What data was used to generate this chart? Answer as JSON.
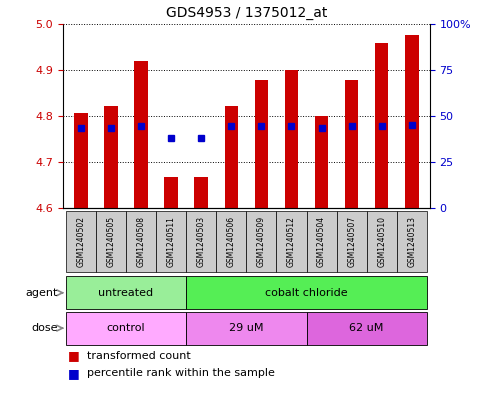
{
  "title": "GDS4953 / 1375012_at",
  "samples": [
    "GSM1240502",
    "GSM1240505",
    "GSM1240508",
    "GSM1240511",
    "GSM1240503",
    "GSM1240506",
    "GSM1240509",
    "GSM1240512",
    "GSM1240504",
    "GSM1240507",
    "GSM1240510",
    "GSM1240513"
  ],
  "transformed_counts": [
    4.807,
    4.822,
    4.919,
    4.667,
    4.668,
    4.822,
    4.877,
    4.899,
    4.8,
    4.877,
    4.957,
    4.975
  ],
  "percentile_ranks_pct": [
    43.5,
    43.5,
    44.5,
    38.0,
    38.0,
    44.5,
    44.5,
    44.5,
    43.5,
    44.5,
    44.5,
    45.0
  ],
  "ylim_left": [
    4.6,
    5.0
  ],
  "ylim_right": [
    0,
    100
  ],
  "yticks_left": [
    4.6,
    4.7,
    4.8,
    4.9,
    5.0
  ],
  "yticks_right": [
    0,
    25,
    50,
    75,
    100
  ],
  "ytick_right_labels": [
    "0",
    "25",
    "50",
    "75",
    "100%"
  ],
  "agent_groups": [
    {
      "label": "untreated",
      "start": 0,
      "end": 4,
      "color": "#99ee99"
    },
    {
      "label": "cobalt chloride",
      "start": 4,
      "end": 12,
      "color": "#55ee55"
    }
  ],
  "dose_groups": [
    {
      "label": "control",
      "start": 0,
      "end": 4,
      "color": "#ffaaff"
    },
    {
      "label": "29 uM",
      "start": 4,
      "end": 8,
      "color": "#ee88ee"
    },
    {
      "label": "62 uM",
      "start": 8,
      "end": 12,
      "color": "#dd66dd"
    }
  ],
  "bar_color": "#cc0000",
  "dot_color": "#0000cc",
  "bar_bottom": 4.6,
  "bar_width": 0.45,
  "grid_color": "#000000",
  "tick_label_color_left": "#cc0000",
  "tick_label_color_right": "#0000cc",
  "font_size": 8,
  "title_font_size": 10,
  "sample_box_color": "#cccccc",
  "agent_arrow_color": "#888888",
  "plot_bg": "#ffffff"
}
